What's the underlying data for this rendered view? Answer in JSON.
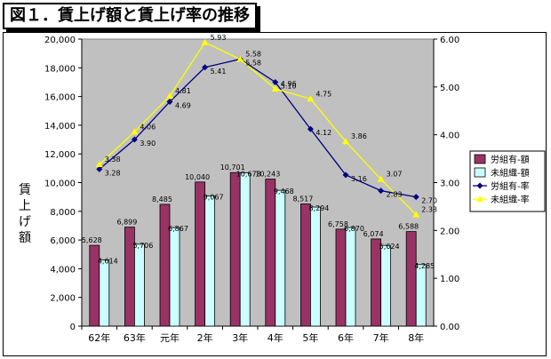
{
  "title": "図１．賃上げ額と賃上げ率の推移",
  "chart_data": {
    "type": "bar",
    "categories": [
      "62年",
      "63年",
      "元年",
      "2年",
      "3年",
      "4年",
      "5年",
      "6年",
      "7年",
      "8年"
    ],
    "ylabel": "賃上げ額",
    "y_left": {
      "min": 0,
      "max": 20000,
      "step": 2000,
      "ticks": [
        "0",
        "2,000",
        "4,000",
        "6,000",
        "8,000",
        "10,000",
        "12,000",
        "14,000",
        "16,000",
        "18,000",
        "20,000"
      ]
    },
    "y_right": {
      "min": 0,
      "max": 6,
      "step": 1,
      "ticks": [
        "0.00",
        "1.00",
        "2.00",
        "3.00",
        "4.00",
        "5.00",
        "6.00"
      ]
    },
    "grid": false,
    "legend_position": "right",
    "series": [
      {
        "name": "労組有-額",
        "kind": "bar",
        "axis": "left",
        "color": "#993366",
        "values": [
          5628,
          6899,
          8485,
          10040,
          10701,
          10243,
          8517,
          6758,
          6074,
          6588
        ],
        "labels": [
          "5,628",
          "6,899",
          "8,485",
          "10,040",
          "10,701",
          "10,243",
          "8,517",
          "6,758",
          "6,074",
          "6,588"
        ]
      },
      {
        "name": "未組織-額",
        "kind": "bar",
        "axis": "left",
        "color": "#ccffff",
        "values": [
          4614,
          5706,
          6867,
          9067,
          10678,
          9468,
          8294,
          6870,
          5624,
          4285
        ],
        "labels": [
          "4,614",
          "5,706",
          "6,867",
          "9,067",
          "10,678",
          "9,468",
          "8,294",
          "6,870",
          "5,624",
          "4,285"
        ]
      },
      {
        "name": "労組有-率",
        "kind": "line",
        "axis": "right",
        "color": "#000080",
        "marker": "diamond",
        "values": [
          3.28,
          3.9,
          4.69,
          5.41,
          5.58,
          5.1,
          4.12,
          3.16,
          2.83,
          2.7
        ],
        "labels": [
          "3.28",
          "3.90",
          "4.69",
          "5.41",
          "5.58",
          "5.10",
          "4.12",
          "3.16",
          "2.83",
          "2.70"
        ]
      },
      {
        "name": "未組織-率",
        "kind": "line",
        "axis": "right",
        "color": "#ffff00",
        "marker": "triangle",
        "values": [
          3.38,
          4.06,
          4.81,
          5.93,
          5.58,
          4.96,
          4.75,
          3.86,
          3.07,
          2.33
        ],
        "labels": [
          "3.38",
          "4.06",
          "4.81",
          "5.93",
          "5.58",
          "4.96",
          "4.75",
          "3.86",
          "3.07",
          "2.33"
        ]
      }
    ]
  }
}
